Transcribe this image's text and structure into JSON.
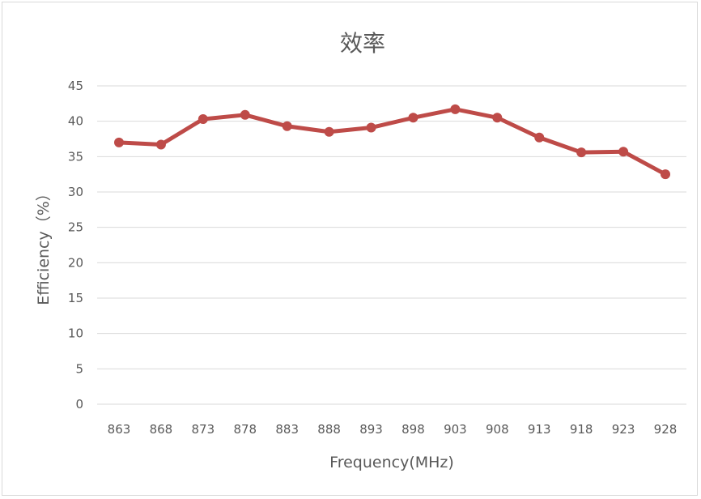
{
  "chart_data": {
    "type": "line",
    "title": "效率",
    "xlabel": "Frequency(MHz)",
    "ylabel": "Efficiency（%）",
    "categories": [
      "863",
      "868",
      "873",
      "878",
      "883",
      "888",
      "893",
      "898",
      "903",
      "908",
      "913",
      "918",
      "923",
      "928"
    ],
    "series": [
      {
        "values": [
          37.0,
          36.7,
          40.3,
          40.9,
          39.3,
          38.5,
          39.1,
          40.5,
          41.7,
          40.5,
          37.7,
          35.6,
          35.7,
          32.5
        ]
      }
    ],
    "ylim": [
      0,
      45
    ],
    "yticks": [
      "0",
      "5",
      "10",
      "15",
      "20",
      "25",
      "30",
      "35",
      "40",
      "45"
    ],
    "grid": true,
    "legend": "none",
    "colors": {
      "line": "#be4b48",
      "grid": "#d9d9d9",
      "text": "#595959"
    }
  }
}
